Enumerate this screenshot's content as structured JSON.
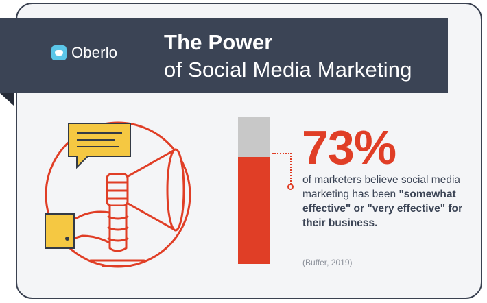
{
  "brand": {
    "name": "Oberlo"
  },
  "title": {
    "line1": "The Power",
    "line2": "of Social Media Marketing"
  },
  "stat": {
    "value": "73%",
    "fraction": 0.73,
    "text_plain": "of marketers believe social media marketing has been ",
    "text_bold": "\"somewhat effective\" or \"very effective\" for their business.",
    "source": "(Buffer, 2019)"
  },
  "colors": {
    "accent": "#e03e26",
    "banner": "#3b4455",
    "logo": "#5bc6e8",
    "bar_rest": "#c8c8c8"
  },
  "icons": [
    "megaphone-icon",
    "speech-bubble-icon"
  ]
}
